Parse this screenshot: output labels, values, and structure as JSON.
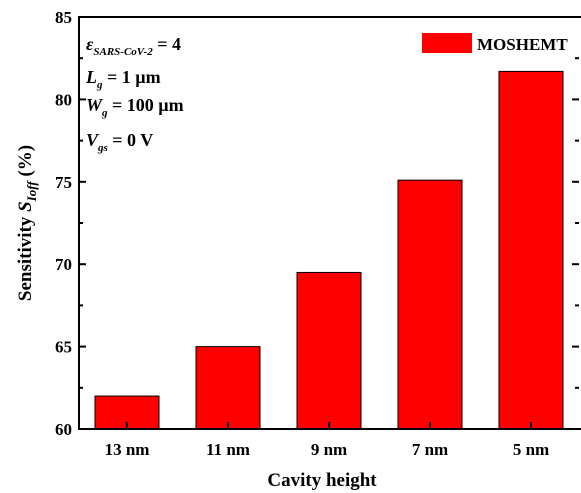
{
  "chart_data": {
    "type": "bar",
    "categories": [
      "13 nm",
      "11 nm",
      "9 nm",
      "7 nm",
      "5 nm"
    ],
    "series": [
      {
        "name": "MOSHEMT",
        "values": [
          62.0,
          65.0,
          69.5,
          75.1,
          81.7
        ]
      }
    ],
    "xlabel": "Cavity height",
    "ylabel": {
      "main": "Sensitivity ",
      "symbol": "S",
      "subscript": "Ioff",
      "suffix": " (%)"
    },
    "ylim": [
      60,
      85
    ],
    "yticks": [
      "60",
      "65",
      "70",
      "75",
      "80",
      "85"
    ],
    "legend_position": "top-right",
    "grid": false,
    "bar_color": "#ff0000",
    "annotations": [
      {
        "symbol": "ε",
        "sub": "SARS-CoV-2",
        "rest": " = 4"
      },
      {
        "symbol": "L",
        "sub": "g",
        "rest": " = 1 µm"
      },
      {
        "symbol": "W",
        "sub": "g",
        "rest": " = 100 µm"
      },
      {
        "symbol": "V",
        "sub": "gs",
        "rest": " = 0 V"
      }
    ]
  }
}
